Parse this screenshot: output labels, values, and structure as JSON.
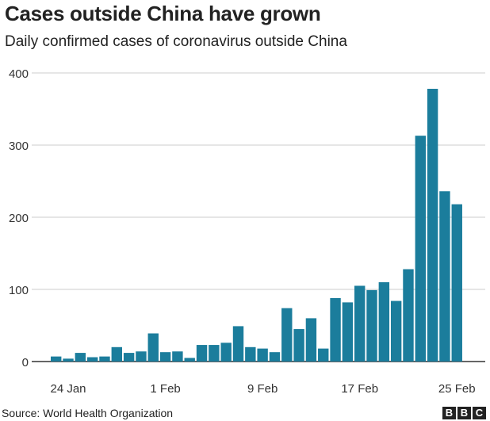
{
  "chart_data": {
    "type": "bar",
    "title": "Cases outside China have grown",
    "subtitle": "Daily confirmed cases of coronavirus outside China",
    "source": "Source: World Health Organization",
    "logo": [
      "B",
      "B",
      "C"
    ],
    "ylim": [
      0,
      400
    ],
    "yticks": [
      0,
      100,
      200,
      300,
      400
    ],
    "xticklabels": [
      {
        "label": "24 Jan",
        "index": 1
      },
      {
        "label": "1 Feb",
        "index": 9
      },
      {
        "label": "9 Feb",
        "index": 17
      },
      {
        "label": "17 Feb",
        "index": 25
      },
      {
        "label": "25 Feb",
        "index": 33
      }
    ],
    "values": [
      7,
      4,
      12,
      6,
      7,
      20,
      12,
      14,
      39,
      13,
      14,
      5,
      23,
      23,
      26,
      49,
      20,
      18,
      13,
      74,
      45,
      60,
      18,
      88,
      82,
      105,
      99,
      110,
      84,
      128,
      313,
      378,
      236,
      218
    ],
    "bar_color": "#1b7d9c",
    "grid": true
  }
}
